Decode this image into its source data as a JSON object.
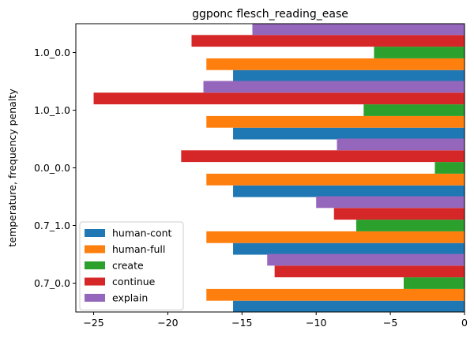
{
  "chart_data": {
    "type": "bar",
    "orientation": "horizontal",
    "title": "ggponc flesch_reading_ease",
    "xlabel": "",
    "ylabel": "temperature, frequency penalty",
    "categories": [
      "0.7_0.0",
      "0.7_1.0",
      "0.0_0.0",
      "1.0_1.0",
      "1.0_0.0"
    ],
    "xlim": [
      -26.2,
      0
    ],
    "xticks": [
      -25,
      -20,
      -15,
      -10,
      -5,
      0
    ],
    "xtick_labels": [
      "−25",
      "−20",
      "−15",
      "−10",
      "−5",
      "0"
    ],
    "grid": false,
    "legend_position": "lower-left",
    "series": [
      {
        "name": "human-cont",
        "color": "#1f77b4",
        "values": [
          -15.6,
          -15.6,
          -15.6,
          -15.6,
          -15.6
        ]
      },
      {
        "name": "human-full",
        "color": "#ff7f0e",
        "values": [
          -17.4,
          -17.4,
          -17.4,
          -17.4,
          -17.4
        ]
      },
      {
        "name": "create",
        "color": "#2ca02c",
        "values": [
          -4.1,
          -7.3,
          -2.0,
          -6.8,
          -6.1
        ]
      },
      {
        "name": "continue",
        "color": "#d62728",
        "values": [
          -12.8,
          -8.8,
          -19.1,
          -25.0,
          -18.4
        ]
      },
      {
        "name": "explain",
        "color": "#9467bd",
        "values": [
          -13.3,
          -10.0,
          -8.6,
          -17.6,
          -14.3
        ]
      }
    ]
  }
}
